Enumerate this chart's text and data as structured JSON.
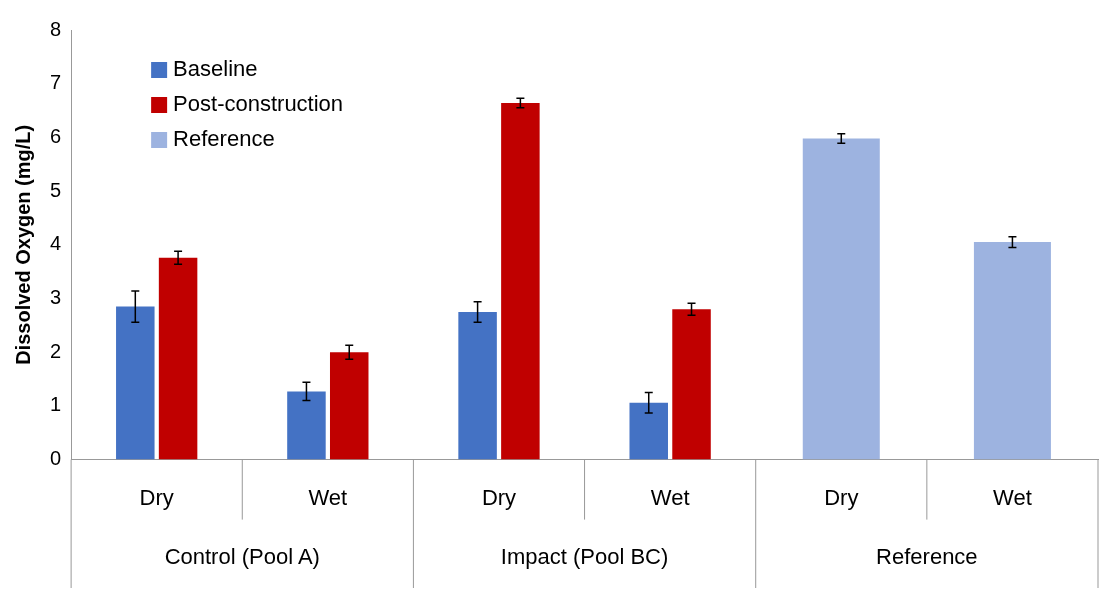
{
  "chart_data": {
    "type": "bar",
    "ylabel": "Dissolved Oxygen (mg/L)",
    "categories": [
      "Dry",
      "Wet",
      "Dry",
      "Wet",
      "Dry",
      "Wet"
    ],
    "annotations": [
      "Control (Pool A)",
      "Impact (Pool BC)",
      "Reference"
    ],
    "series": [
      {
        "name": "Baseline",
        "color": "#4472c4",
        "values": [
          2.85,
          1.27,
          2.75,
          1.06,
          null,
          null
        ],
        "errors": [
          0.29,
          0.17,
          0.19,
          0.19,
          null,
          null
        ]
      },
      {
        "name": "Post-construction",
        "color": "#c00000",
        "values": [
          3.76,
          2.0,
          6.64,
          2.8,
          null,
          null
        ],
        "errors": [
          0.12,
          0.13,
          0.09,
          0.11,
          null,
          null
        ]
      },
      {
        "name": "Reference",
        "color": "#9db3e0",
        "values": [
          null,
          null,
          null,
          null,
          5.98,
          4.05
        ],
        "errors": [
          null,
          null,
          null,
          null,
          0.09,
          0.1
        ]
      }
    ],
    "ylim": [
      0,
      8
    ],
    "yticks": [
      0,
      1,
      2,
      3,
      4,
      5,
      6,
      7,
      8
    ],
    "grid": false,
    "legend": "top left"
  }
}
